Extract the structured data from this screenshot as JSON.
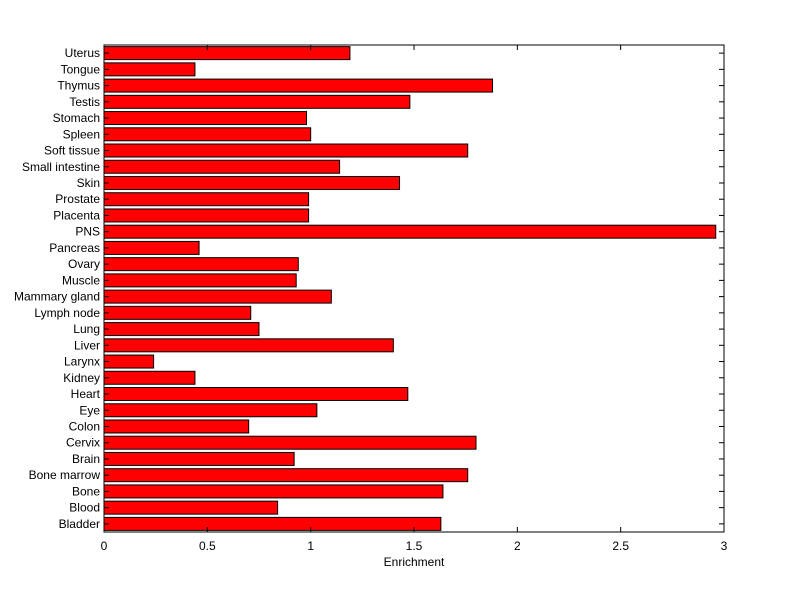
{
  "chart_data": {
    "type": "bar",
    "orientation": "horizontal",
    "categories": [
      "Bladder",
      "Blood",
      "Bone",
      "Bone marrow",
      "Brain",
      "Cervix",
      "Colon",
      "Eye",
      "Heart",
      "Kidney",
      "Larynx",
      "Liver",
      "Lung",
      "Lymph node",
      "Mammary gland",
      "Muscle",
      "Ovary",
      "Pancreas",
      "PNS",
      "Placenta",
      "Prostate",
      "Skin",
      "Small intestine",
      "Soft tissue",
      "Spleen",
      "Stomach",
      "Testis",
      "Thymus",
      "Tongue",
      "Uterus"
    ],
    "values": [
      1.63,
      0.84,
      1.64,
      1.76,
      0.92,
      1.8,
      0.7,
      1.03,
      1.47,
      0.44,
      0.24,
      1.4,
      0.75,
      0.71,
      1.1,
      0.93,
      0.94,
      0.46,
      2.96,
      0.99,
      0.99,
      1.43,
      1.14,
      1.76,
      1.0,
      0.98,
      1.48,
      1.88,
      0.44,
      1.19
    ],
    "xlabel": "Enrichment",
    "ylabel": "",
    "title": "",
    "xlim": [
      0,
      3
    ],
    "xticks": [
      0,
      0.5,
      1,
      1.5,
      2,
      2.5,
      3
    ],
    "xtick_labels": [
      "0",
      "0.5",
      "1",
      "1.5",
      "2",
      "2.5",
      "3"
    ],
    "grid": false,
    "bar_color": "#ff0000",
    "edge_color": "#000000"
  }
}
